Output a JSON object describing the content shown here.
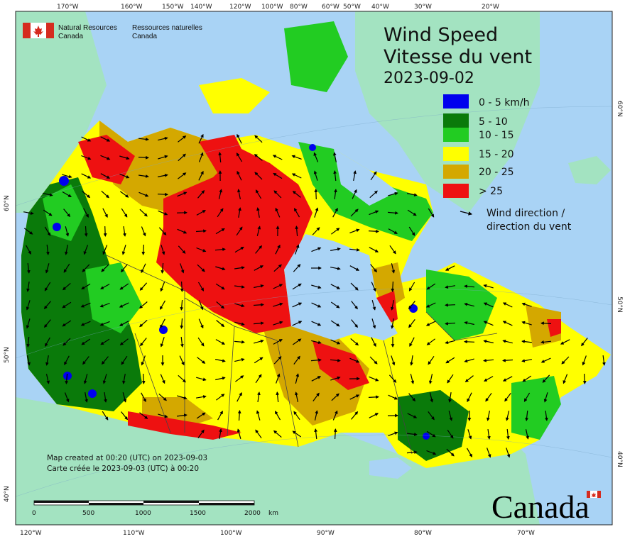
{
  "agency": {
    "en": "Natural Resources\nCanada",
    "en_l1": "Natural Resources",
    "en_l2": "Canada",
    "fr_l1": "Ressources naturelles",
    "fr_l2": "Canada"
  },
  "title": {
    "en": "Wind Speed",
    "fr": "Vitesse du vent",
    "date": "2023-09-02"
  },
  "legend": {
    "items": [
      {
        "label": "0 - 5 km/h",
        "color": "#0000ee"
      },
      {
        "label": "5 - 10",
        "color": "#0a7a0a"
      },
      {
        "label": "10 - 15",
        "color": "#22cc22"
      },
      {
        "label": "15 - 20",
        "color": "#ffff00"
      },
      {
        "label": "20 - 25",
        "color": "#d4a800"
      },
      {
        "label": "> 25",
        "color": "#ee1111"
      }
    ],
    "direction_l1": "Wind direction /",
    "direction_l2": "direction du vent"
  },
  "credit": {
    "en": "Map created at 00:20 (UTC) on 2023-09-03",
    "fr": "Carte créée le 2023-09-03 (UTC) à 00:20"
  },
  "scale": {
    "labels": [
      "0",
      "500",
      "1000",
      "1500",
      "2000"
    ],
    "unit": "km"
  },
  "wordmark": "Canada",
  "axes": {
    "top": [
      "170°W",
      "160°W",
      "150°W",
      "140°W",
      "120°W",
      "100°W",
      "80°W",
      "60°W",
      "50°W",
      "40°W",
      "30°W",
      "20°W"
    ],
    "bottom": [
      "120°W",
      "110°W",
      "100°W",
      "90°W",
      "80°W",
      "70°W"
    ],
    "left": [
      "60°N",
      "50°N",
      "40°N"
    ],
    "right": [
      "60°N",
      "50°N",
      "40°N"
    ]
  },
  "colors": {
    "ocean": "#a9d3f5",
    "land_other": "#a3e3c1",
    "border": "#444444"
  }
}
